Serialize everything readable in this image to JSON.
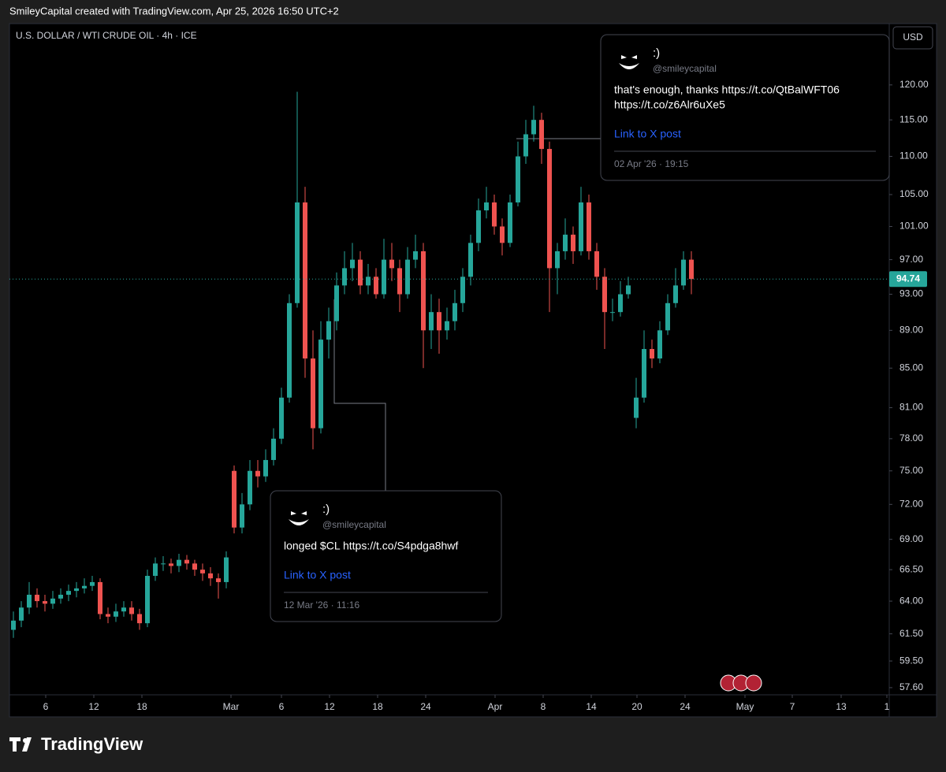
{
  "header": {
    "attribution": "SmileyCapital created with TradingView.com, Apr 25, 2026 16:50 UTC+2",
    "symbol": "U.S. DOLLAR / WTI CRUDE OIL · 4h · ICE",
    "currency_button": "USD"
  },
  "chart_data": {
    "type": "candlestick",
    "up_color": "#26a69a",
    "down_color": "#ef5350",
    "log_scale": true,
    "grid": false,
    "open": [
      61.8,
      62.5,
      63.5,
      64.5,
      64,
      63.8,
      64.2,
      64.5,
      64.8,
      65,
      65.2,
      65.5,
      63,
      62.8,
      63.2,
      63.5,
      63,
      62.3,
      66,
      67,
      67,
      66.8,
      67.3,
      67,
      66.5,
      66.2,
      65.8,
      65.5,
      75,
      70,
      72,
      75,
      74.5,
      76,
      78,
      82,
      92,
      104,
      86,
      79,
      88,
      90,
      94,
      96,
      97,
      94,
      95,
      93,
      97,
      96,
      93,
      97,
      98,
      89,
      91,
      89,
      90,
      92,
      95,
      99,
      103,
      104,
      101,
      99,
      104,
      110,
      113,
      115,
      111,
      96,
      98,
      100,
      98,
      104,
      98,
      95,
      91,
      91,
      93,
      80,
      82,
      87,
      86,
      89,
      92,
      94,
      97
    ],
    "high": [
      63.2,
      64,
      65.5,
      65,
      64.5,
      64.8,
      65,
      65.3,
      65.5,
      65.8,
      66,
      65.8,
      63.5,
      63.8,
      64,
      64,
      63.4,
      66.5,
      67.5,
      67.6,
      67.4,
      67.8,
      67.7,
      67.3,
      67,
      66.7,
      66.2,
      68,
      75.5,
      73,
      76,
      76,
      77,
      79,
      83,
      93,
      119,
      106,
      89,
      90,
      91.5,
      95.5,
      98,
      99,
      98,
      96.5,
      96,
      99.5,
      99,
      97,
      98.5,
      100,
      99,
      93,
      92.5,
      91.5,
      93.5,
      96,
      100,
      104.5,
      106,
      105,
      102,
      105,
      112,
      115,
      117,
      116,
      112,
      99,
      102,
      101,
      106,
      105,
      99,
      96,
      92.5,
      94.5,
      95,
      84,
      89,
      88,
      90,
      93,
      96,
      98,
      98
    ],
    "low": [
      61.2,
      62,
      63,
      63.5,
      63.2,
      63.4,
      63.8,
      64,
      64.3,
      64.6,
      64.8,
      62.6,
      62.3,
      62.4,
      62.8,
      62.5,
      61.8,
      62,
      65.6,
      66.4,
      66.2,
      66.3,
      66.5,
      66,
      65.6,
      65.2,
      64.2,
      65,
      69.5,
      69.5,
      71.5,
      73.5,
      74,
      75.5,
      77.5,
      81.5,
      91.5,
      84,
      77,
      78.5,
      86,
      89,
      93,
      94.5,
      93,
      93,
      92.5,
      92.5,
      94.5,
      91,
      92.5,
      96,
      85,
      87,
      86.5,
      88,
      89,
      91,
      94,
      98,
      102,
      100,
      97.5,
      98.5,
      103.5,
      109,
      112,
      109,
      91,
      93,
      97,
      96.5,
      97.5,
      97,
      93.5,
      87,
      90,
      90.5,
      92.5,
      79,
      81.5,
      85,
      85.5,
      88.5,
      91.5,
      93.5,
      93
    ],
    "close": [
      62.5,
      63.5,
      64.5,
      64,
      63.8,
      64.2,
      64.5,
      64.8,
      65,
      65.2,
      65.5,
      63,
      62.8,
      63.2,
      63.5,
      63,
      62.3,
      66,
      67,
      67,
      66.8,
      67.3,
      67,
      66.5,
      66.2,
      65.8,
      65.5,
      67.5,
      70,
      72,
      75,
      74.5,
      76,
      78,
      82,
      92,
      104,
      86,
      79,
      88,
      90,
      94,
      96,
      97,
      94,
      95,
      93,
      97,
      96,
      93,
      97,
      98,
      89,
      91,
      89,
      90,
      92,
      95,
      99,
      103,
      104,
      101,
      99,
      104,
      110,
      113,
      115,
      111,
      96,
      98,
      100,
      98,
      104,
      98,
      95,
      91,
      91,
      93,
      94,
      82,
      87,
      86,
      89,
      92,
      94,
      97,
      94.74
    ],
    "ylim": [
      57.1,
      129.3
    ],
    "yticks": [
      {
        "value": 120,
        "label": "120.00"
      },
      {
        "value": 115,
        "label": "115.00"
      },
      {
        "value": 110,
        "label": "110.00"
      },
      {
        "value": 105,
        "label": "105.00"
      },
      {
        "value": 101,
        "label": "101.00"
      },
      {
        "value": 97,
        "label": "97.00"
      },
      {
        "value": 93,
        "label": "93.00"
      },
      {
        "value": 89,
        "label": "89.00"
      },
      {
        "value": 85,
        "label": "85.00"
      },
      {
        "value": 81,
        "label": "81.00"
      },
      {
        "value": 78,
        "label": "78.00"
      },
      {
        "value": 75,
        "label": "75.00"
      },
      {
        "value": 72,
        "label": "72.00"
      },
      {
        "value": 69,
        "label": "69.00"
      },
      {
        "value": 66.5,
        "label": "66.50"
      },
      {
        "value": 64,
        "label": "64.00"
      },
      {
        "value": 61.5,
        "label": "61.50"
      },
      {
        "value": 59.5,
        "label": "59.50"
      },
      {
        "value": 57.6,
        "label": "57.60"
      }
    ],
    "xlim": [
      0,
      111.6
    ],
    "xticks": [
      {
        "value": 4.6,
        "label": "6"
      },
      {
        "value": 10.7,
        "label": "12"
      },
      {
        "value": 16.8,
        "label": "18"
      },
      {
        "value": 28.1,
        "label": "Mar"
      },
      {
        "value": 34.5,
        "label": "6"
      },
      {
        "value": 40.6,
        "label": "12"
      },
      {
        "value": 46.7,
        "label": "18"
      },
      {
        "value": 52.8,
        "label": "24"
      },
      {
        "value": 61.6,
        "label": "Apr"
      },
      {
        "value": 67.7,
        "label": "8"
      },
      {
        "value": 73.8,
        "label": "14"
      },
      {
        "value": 79.6,
        "label": "20"
      },
      {
        "value": 85.7,
        "label": "24"
      },
      {
        "value": 93.3,
        "label": "May"
      },
      {
        "value": 99.3,
        "label": "7"
      },
      {
        "value": 105.5,
        "label": "13"
      },
      {
        "value": 111.3,
        "label": "1"
      }
    ]
  },
  "tweets": [
    {
      "name": ":)",
      "handle": "@smileycapital",
      "text_lines": [
        "that's enough, thanks https://t.co/QtBalWFT06",
        "https://t.co/z6Alr6uXe5"
      ],
      "link": "Link to X post",
      "date": "02 Apr '26 · 19:15"
    },
    {
      "name": ":)",
      "handle": "@smileycapital",
      "text_lines": [
        "longed $CL https://t.co/S4pdga8hwf"
      ],
      "link": "Link to X post",
      "date": "12 Mar '26 · 11:16"
    }
  ],
  "footer": {
    "logo": "TradingView"
  }
}
